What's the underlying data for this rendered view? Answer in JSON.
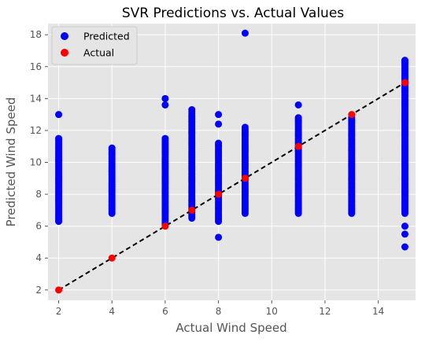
{
  "chart_data": {
    "type": "scatter",
    "title": "SVR Predictions vs. Actual Values",
    "xlabel": "Actual Wind Speed",
    "ylabel": "Predicted Wind Speed",
    "xlim": [
      1.6,
      15.4
    ],
    "ylim": [
      1.35,
      18.7
    ],
    "xticks": [
      2,
      4,
      6,
      8,
      10,
      12,
      14
    ],
    "yticks": [
      2,
      4,
      6,
      8,
      10,
      12,
      14,
      16,
      18
    ],
    "grid": true,
    "legend_position": "top-left",
    "series": [
      {
        "name": "Predicted",
        "color": "#0000ff",
        "predicted_ranges": [
          {
            "x": 2,
            "min": 6.3,
            "max": 11.5,
            "outliers": [
              13.0
            ]
          },
          {
            "x": 4,
            "min": 6.8,
            "max": 10.9,
            "outliers": []
          },
          {
            "x": 6,
            "min": 6.1,
            "max": 11.5,
            "outliers": [
              13.6,
              14.0
            ]
          },
          {
            "x": 7,
            "min": 6.5,
            "max": 13.3,
            "outliers": []
          },
          {
            "x": 8,
            "min": 6.3,
            "max": 11.2,
            "outliers": [
              5.3,
              12.4,
              13.0
            ]
          },
          {
            "x": 9,
            "min": 6.8,
            "max": 12.2,
            "outliers": [
              18.1
            ]
          },
          {
            "x": 11,
            "min": 6.8,
            "max": 12.8,
            "outliers": [
              13.6
            ]
          },
          {
            "x": 13,
            "min": 6.8,
            "max": 12.8,
            "outliers": []
          },
          {
            "x": 15,
            "min": 6.8,
            "max": 16.4,
            "outliers": [
              4.7,
              5.5,
              6.0
            ]
          }
        ]
      },
      {
        "name": "Actual",
        "color": "#ff0000",
        "points": [
          [
            2,
            2
          ],
          [
            4,
            4
          ],
          [
            6,
            6
          ],
          [
            7,
            7
          ],
          [
            8,
            8
          ],
          [
            9,
            9
          ],
          [
            11,
            11
          ],
          [
            13,
            13
          ],
          [
            15,
            15
          ]
        ]
      }
    ],
    "reference_line": {
      "from": [
        2,
        2
      ],
      "to": [
        15,
        15
      ],
      "color": "#000000",
      "style": "dashed"
    }
  }
}
